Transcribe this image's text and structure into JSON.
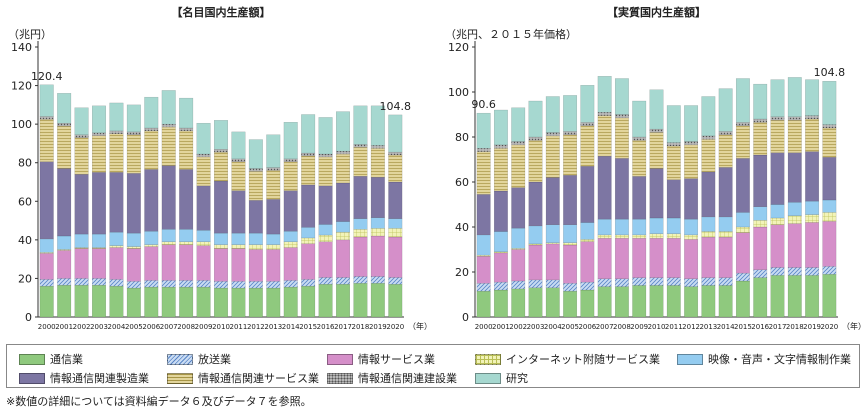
{
  "legend": {
    "items": [
      {
        "label": "通信業",
        "color": "#8fc97e",
        "pattern": "none"
      },
      {
        "label": "放送業",
        "color": "#a9c4ea",
        "pattern": "hatch"
      },
      {
        "label": "情報サービス業",
        "color": "#d58fc9",
        "pattern": "none"
      },
      {
        "label": "インターネット附随サービス業",
        "color": "#eef0a6",
        "pattern": "grid"
      },
      {
        "label": "映像・音声・文字情報制作業",
        "color": "#94ccf0",
        "pattern": "none"
      },
      {
        "label": "情報通信関連製造業",
        "color": "#7d76a3",
        "pattern": "none"
      },
      {
        "label": "情報通信関連サービス業",
        "color": "#ddcf93",
        "pattern": "hlines"
      },
      {
        "label": "情報通信関連建設業",
        "color": "#9a9a9a",
        "pattern": "dots"
      },
      {
        "label": "研究",
        "color": "#a6d8d0",
        "pattern": "none"
      }
    ]
  },
  "footnote": "※数値の詳細については資料編データ６及びデータ７を参照。",
  "chart_data": [
    {
      "type": "bar",
      "stacked": true,
      "title": "【名目国内生産額】",
      "ylabel": "（兆円）",
      "xunit": "（年）",
      "ylim": [
        0,
        140
      ],
      "yticks": [
        0,
        20,
        40,
        60,
        80,
        100,
        120,
        140
      ],
      "grid": false,
      "categories": [
        "2000",
        "2001",
        "2002",
        "2003",
        "2004",
        "2005",
        "2006",
        "2007",
        "2008",
        "2009",
        "2010",
        "2011",
        "2012",
        "2013",
        "2014",
        "2015",
        "2016",
        "2017",
        "2018",
        "2019",
        "2020"
      ],
      "annotations": [
        {
          "category": "2000",
          "text": "120.4"
        },
        {
          "category": "2020",
          "text": "104.8"
        }
      ],
      "series": [
        {
          "name": "通信業",
          "values": [
            16,
            16.5,
            16.5,
            16.5,
            16,
            15,
            15.5,
            15.5,
            15.5,
            15.5,
            15,
            15,
            15,
            15,
            15.5,
            16,
            17,
            17,
            17.5,
            17.5,
            17
          ]
        },
        {
          "name": "放送業",
          "values": [
            3.5,
            3.5,
            3.5,
            3.5,
            3.5,
            3.5,
            3.5,
            3.5,
            3.5,
            3.5,
            3.5,
            3.5,
            3.5,
            3.5,
            3.5,
            3.5,
            3.5,
            3.5,
            3.5,
            3.5,
            3.5
          ]
        },
        {
          "name": "情報サービス業",
          "values": [
            13.5,
            14.5,
            15.5,
            15.5,
            16.5,
            17,
            17.5,
            18.5,
            18.5,
            18,
            17,
            17,
            16.5,
            16.5,
            17,
            18.5,
            18.5,
            19.5,
            20.5,
            21,
            21
          ]
        },
        {
          "name": "インターネット附随サービス業",
          "values": [
            0.5,
            0.5,
            0.5,
            0.5,
            1,
            1,
            1,
            1.5,
            1.5,
            2,
            2,
            2,
            2.5,
            2.5,
            3,
            3,
            3.5,
            4,
            4,
            4,
            4.5
          ]
        },
        {
          "name": "映像・音声・文字情報制作業",
          "values": [
            7,
            7,
            7,
            7,
            7,
            7,
            7,
            6.5,
            6.5,
            6,
            6,
            6,
            6,
            5.5,
            5.5,
            5.5,
            5.5,
            5.5,
            5.5,
            5.5,
            5
          ]
        },
        {
          "name": "情報通信関連製造業",
          "values": [
            40,
            35,
            31,
            32,
            31,
            31,
            32,
            33,
            31,
            23,
            27,
            22,
            17,
            18,
            21,
            22,
            20,
            20,
            22,
            21,
            19
          ]
        },
        {
          "name": "情報通信関連サービス業",
          "values": [
            22,
            22,
            19,
            19,
            20,
            20,
            20,
            20,
            20,
            15,
            15,
            15,
            15,
            15,
            15,
            15,
            15,
            15,
            15,
            15,
            14
          ]
        },
        {
          "name": "情報通信関連建設業",
          "values": [
            1.5,
            1.5,
            1.5,
            1.5,
            1.5,
            1.5,
            1.5,
            1.5,
            1.5,
            1.5,
            1.5,
            1.5,
            1.5,
            1.5,
            1.5,
            1.5,
            1.5,
            1.5,
            1.5,
            1.5,
            1.5
          ]
        },
        {
          "name": "研究",
          "values": [
            16.4,
            15.5,
            14,
            14,
            14.5,
            14,
            16,
            17.5,
            15.5,
            16,
            15,
            14,
            15,
            17,
            19,
            20,
            19,
            20.5,
            20,
            20.5,
            19.3
          ]
        }
      ]
    },
    {
      "type": "bar",
      "stacked": true,
      "title": "【実質国内生産額】",
      "ylabel": "（兆円、２０１５年価格）",
      "xunit": "（年）",
      "ylim": [
        0,
        120
      ],
      "yticks": [
        0,
        20,
        40,
        60,
        80,
        100,
        120
      ],
      "grid": false,
      "categories": [
        "2000",
        "2001",
        "2002",
        "2003",
        "2004",
        "2005",
        "2006",
        "2007",
        "2008",
        "2009",
        "2010",
        "2011",
        "2012",
        "2013",
        "2014",
        "2015",
        "2016",
        "2017",
        "2018",
        "2019",
        "2020"
      ],
      "annotations": [
        {
          "category": "2000",
          "text": "90.6"
        },
        {
          "category": "2020",
          "text": "104.8"
        }
      ],
      "series": [
        {
          "name": "通信業",
          "values": [
            11.5,
            12,
            12.5,
            13,
            13,
            11.5,
            12,
            13.5,
            13.5,
            14,
            14,
            14,
            13.5,
            14,
            14,
            16,
            17.5,
            18.5,
            18.5,
            18.5,
            19
          ]
        },
        {
          "name": "放送業",
          "values": [
            3.5,
            3.5,
            3.5,
            3.5,
            3.5,
            3.5,
            3.5,
            3.5,
            3.5,
            3.5,
            3.5,
            3.5,
            3.5,
            3.5,
            3.5,
            3.5,
            3.5,
            3.5,
            3.5,
            3.5,
            3.5
          ]
        },
        {
          "name": "情報サービス業",
          "values": [
            12,
            13,
            14,
            15.5,
            16,
            17,
            18,
            18,
            18,
            17.5,
            17.5,
            17.5,
            17.5,
            18,
            18,
            18,
            19,
            19,
            19.5,
            20,
            20
          ]
        },
        {
          "name": "インターネット附随サービス業",
          "values": [
            0.5,
            0.5,
            0.5,
            0.5,
            0.5,
            1,
            1,
            1.5,
            1.5,
            1.5,
            2,
            2,
            2,
            2.5,
            2.5,
            2.5,
            3,
            3,
            3.5,
            3.5,
            4
          ]
        },
        {
          "name": "映像・音声・文字情報制作業",
          "values": [
            9,
            9,
            9,
            8,
            8,
            8,
            7.5,
            7,
            7,
            7,
            7,
            7,
            7,
            6.5,
            6.5,
            6.5,
            6,
            6,
            6,
            6,
            5.5
          ]
        },
        {
          "name": "情報通信関連製造業",
          "values": [
            18,
            18,
            18,
            19.5,
            21,
            22,
            25,
            28,
            27,
            19,
            22,
            17,
            18,
            20,
            22,
            24,
            23,
            23,
            22,
            22,
            19
          ]
        },
        {
          "name": "情報通信関連サービス業",
          "values": [
            19,
            19,
            19,
            18.5,
            18.5,
            18,
            18,
            18,
            18,
            16,
            16,
            15,
            15,
            14.5,
            14.5,
            14.5,
            14.5,
            14.5,
            14.5,
            14.5,
            13
          ]
        },
        {
          "name": "情報通信関連建設業",
          "values": [
            1.5,
            1.5,
            1.5,
            1.5,
            1.5,
            1.5,
            1.5,
            1.5,
            1.5,
            1.5,
            1.5,
            1.5,
            1.5,
            1.5,
            1.5,
            1.5,
            1.5,
            1.5,
            1.5,
            1.5,
            1.5
          ]
        },
        {
          "name": "研究",
          "values": [
            15.6,
            15.5,
            15,
            16,
            16,
            16,
            16.5,
            16,
            16,
            16,
            17.5,
            16.5,
            16,
            17.5,
            19,
            19.5,
            15.5,
            16.5,
            17.5,
            16,
            19.3
          ]
        }
      ]
    }
  ]
}
